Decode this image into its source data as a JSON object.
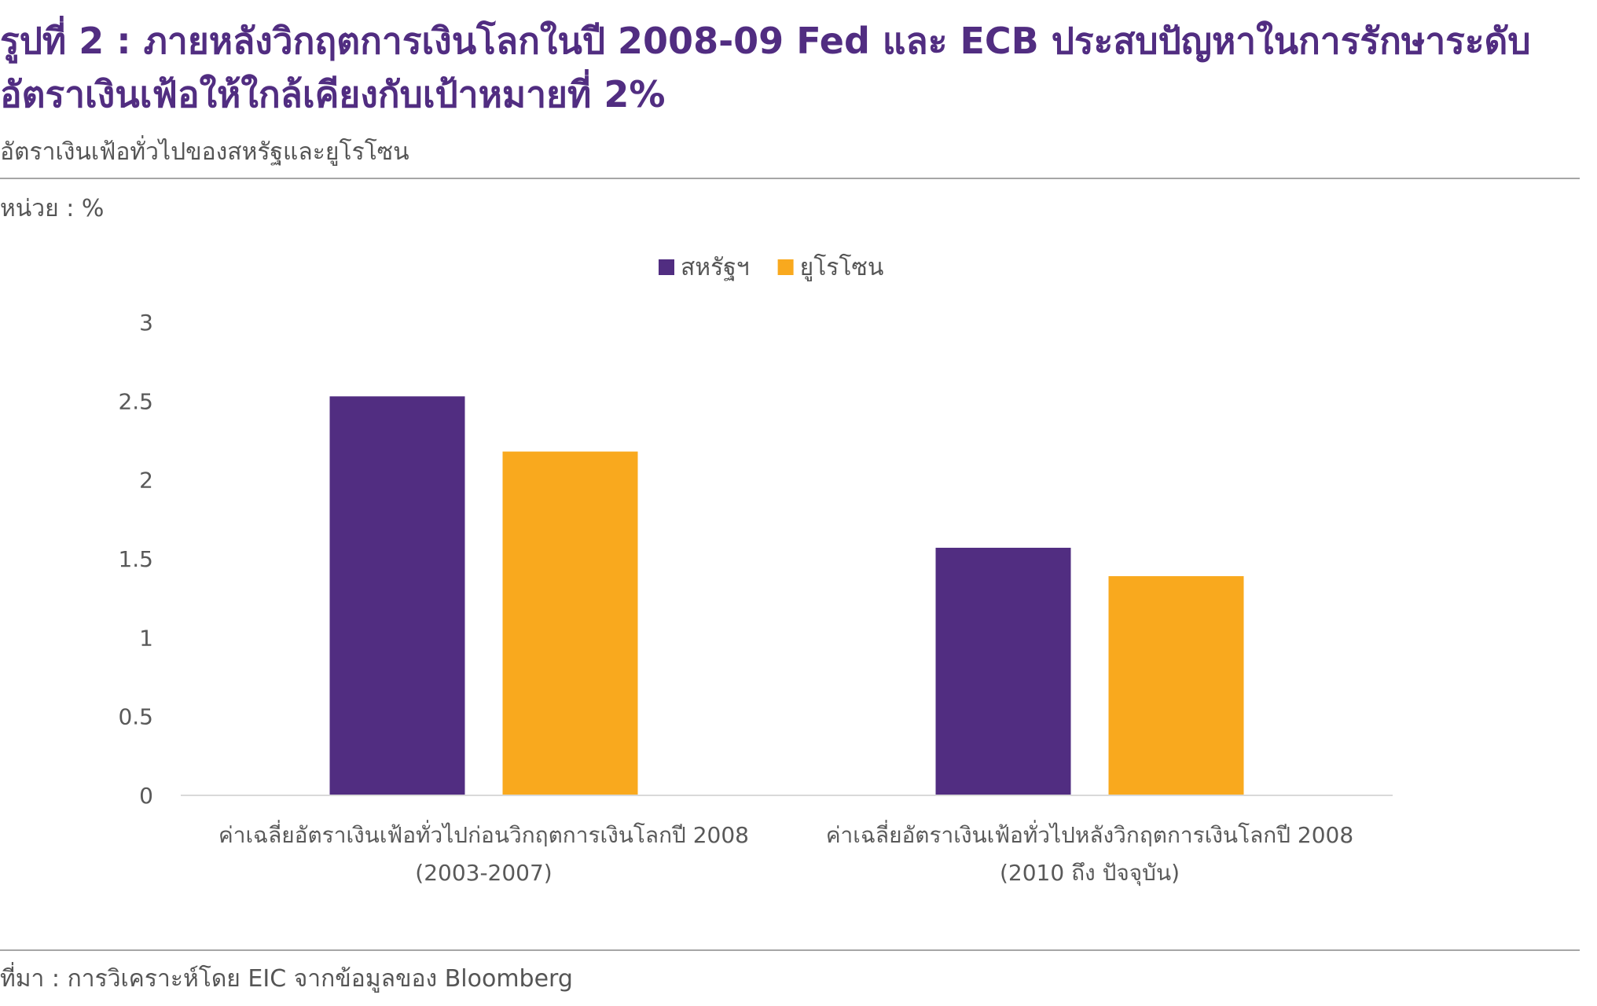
{
  "title": "รูปที่ 2 : ภายหลังวิกฤตการเงินโลกในปี 2008-09 Fed และ ECB ประสบปัญหาในการรักษาระดับอัตราเงินเฟ้อให้ใกล้เคียงกับเป้าหมายที่ 2%",
  "subtitle": "อัตราเงินเฟ้อทั่วไปของสหรัฐและยูโรโซน",
  "unit": "หน่วย : %",
  "source": "ที่มา : การวิเคราะห์โดย EIC จากข้อมูลของ Bloomberg",
  "colors": {
    "us": "#512D81",
    "eurozone": "#F9A91E",
    "title": "#512D81"
  },
  "chart_data": {
    "type": "bar",
    "categories": [
      [
        "ค่าเฉลี่ยอัตราเงินเฟ้อทั่วไปก่อนวิกฤตการเงินโลกปี 2008",
        "(2003-2007)"
      ],
      [
        "ค่าเฉลี่ยอัตราเงินเฟ้อทั่วไปหลังวิกฤตการเงินโลกปี 2008",
        "(2010 ถึง ปัจจุบัน)"
      ]
    ],
    "series": [
      {
        "name": "สหรัฐฯ",
        "values": [
          2.53,
          1.57
        ],
        "color": "#512D81"
      },
      {
        "name": "ยูโรโซน",
        "values": [
          2.18,
          1.39
        ],
        "color": "#F9A91E"
      }
    ],
    "ylim": [
      0,
      3
    ],
    "yticks": [
      "0",
      "0.5",
      "1",
      "1.5",
      "2",
      "2.5",
      "3"
    ],
    "grid": false,
    "legend": "top-center"
  }
}
